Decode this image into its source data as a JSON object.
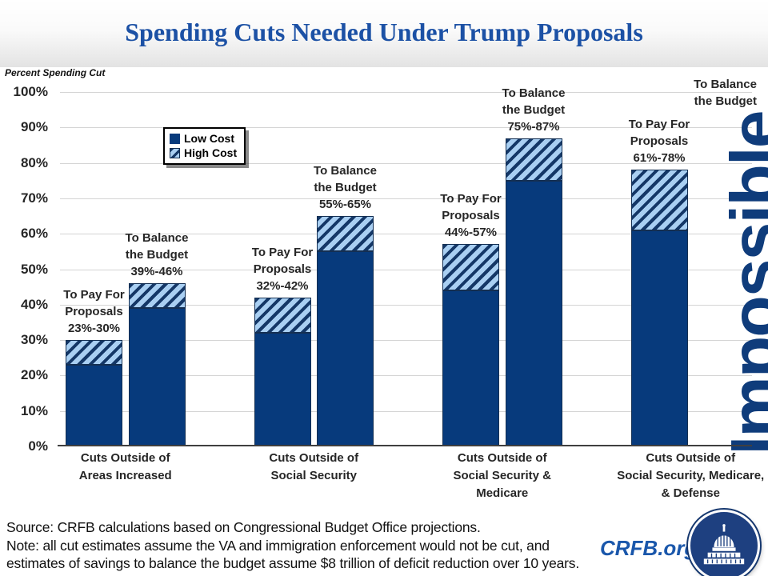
{
  "title": "Spending Cuts Needed Under Trump Proposals",
  "colors": {
    "bar_navy": "#073A7C",
    "hatch_light_blue": "#A9CFF2",
    "hatch_stripe_navy": "#143767",
    "title_blue": "#1C51A5",
    "impossible_blue": "#0F3C7B",
    "crfb_blue": "#1A57AB",
    "grid_gray": "#D4D4D4"
  },
  "chart_data": {
    "type": "bar",
    "stacked": true,
    "title": "Spending Cuts Needed Under Trump Proposals",
    "ylabel": "Percent Spending Cut",
    "xlabel": "",
    "ylim": [
      0,
      100
    ],
    "grid": true,
    "yticks": [
      "0%",
      "10%",
      "20%",
      "30%",
      "40%",
      "50%",
      "60%",
      "70%",
      "80%",
      "90%",
      "100%"
    ],
    "legend": [
      {
        "label": "Low Cost",
        "style": "solid-navy"
      },
      {
        "label": "High Cost",
        "style": "hatched-light-blue"
      }
    ],
    "series_note": "Solid segment = Low Cost estimate; hatched extension = High Cost estimate",
    "groups": [
      {
        "category_lines": [
          "Cuts Outside of",
          "Areas Increased"
        ],
        "bars": [
          {
            "name": "To Pay For Proposals",
            "annotation_lines": [
              "To Pay For",
              "Proposals",
              "23%-30%"
            ],
            "low_pct": 23,
            "high_pct": 30
          },
          {
            "name": "To Balance the Budget",
            "annotation_lines": [
              "To Balance",
              "the Budget",
              "39%-46%"
            ],
            "low_pct": 39,
            "high_pct": 46
          }
        ]
      },
      {
        "category_lines": [
          "Cuts Outside of",
          "Social Security"
        ],
        "bars": [
          {
            "name": "To Pay For Proposals",
            "annotation_lines": [
              "To Pay For",
              "Proposals",
              "32%-42%"
            ],
            "low_pct": 32,
            "high_pct": 42
          },
          {
            "name": "To Balance the Budget",
            "annotation_lines": [
              "To Balance",
              "the Budget",
              "55%-65%"
            ],
            "low_pct": 55,
            "high_pct": 65
          }
        ]
      },
      {
        "category_lines": [
          "Cuts Outside of",
          "Social Security &",
          "Medicare"
        ],
        "bars": [
          {
            "name": "To Pay For Proposals",
            "annotation_lines": [
              "To Pay For",
              "Proposals",
              "44%-57%"
            ],
            "low_pct": 44,
            "high_pct": 57
          },
          {
            "name": "To Balance the Budget",
            "annotation_lines": [
              "To Balance",
              "the Budget",
              "75%-87%"
            ],
            "low_pct": 75,
            "high_pct": 87
          }
        ]
      },
      {
        "category_lines": [
          "Cuts Outside of",
          "Social Security, Medicare,",
          "& Defense"
        ],
        "bars": [
          {
            "name": "To Pay For Proposals",
            "annotation_lines": [
              "To Pay For",
              "Proposals",
              "61%-78%"
            ],
            "low_pct": 61,
            "high_pct": 78
          },
          {
            "name": "To Balance the Budget",
            "annotation_lines": [
              "To Balance",
              "the Budget"
            ],
            "impossible": true,
            "value_text": "Impossible"
          }
        ]
      }
    ]
  },
  "footer": {
    "lines": [
      "Source: CRFB calculations based on Congressional Budget Office projections.",
      "Note: all cut estimates assume the VA and immigration enforcement would not be cut, and",
      "estimates of savings to balance the budget assume $8 trillion of deficit reduction over 10 years."
    ],
    "logo_text": "CRFB.org"
  }
}
